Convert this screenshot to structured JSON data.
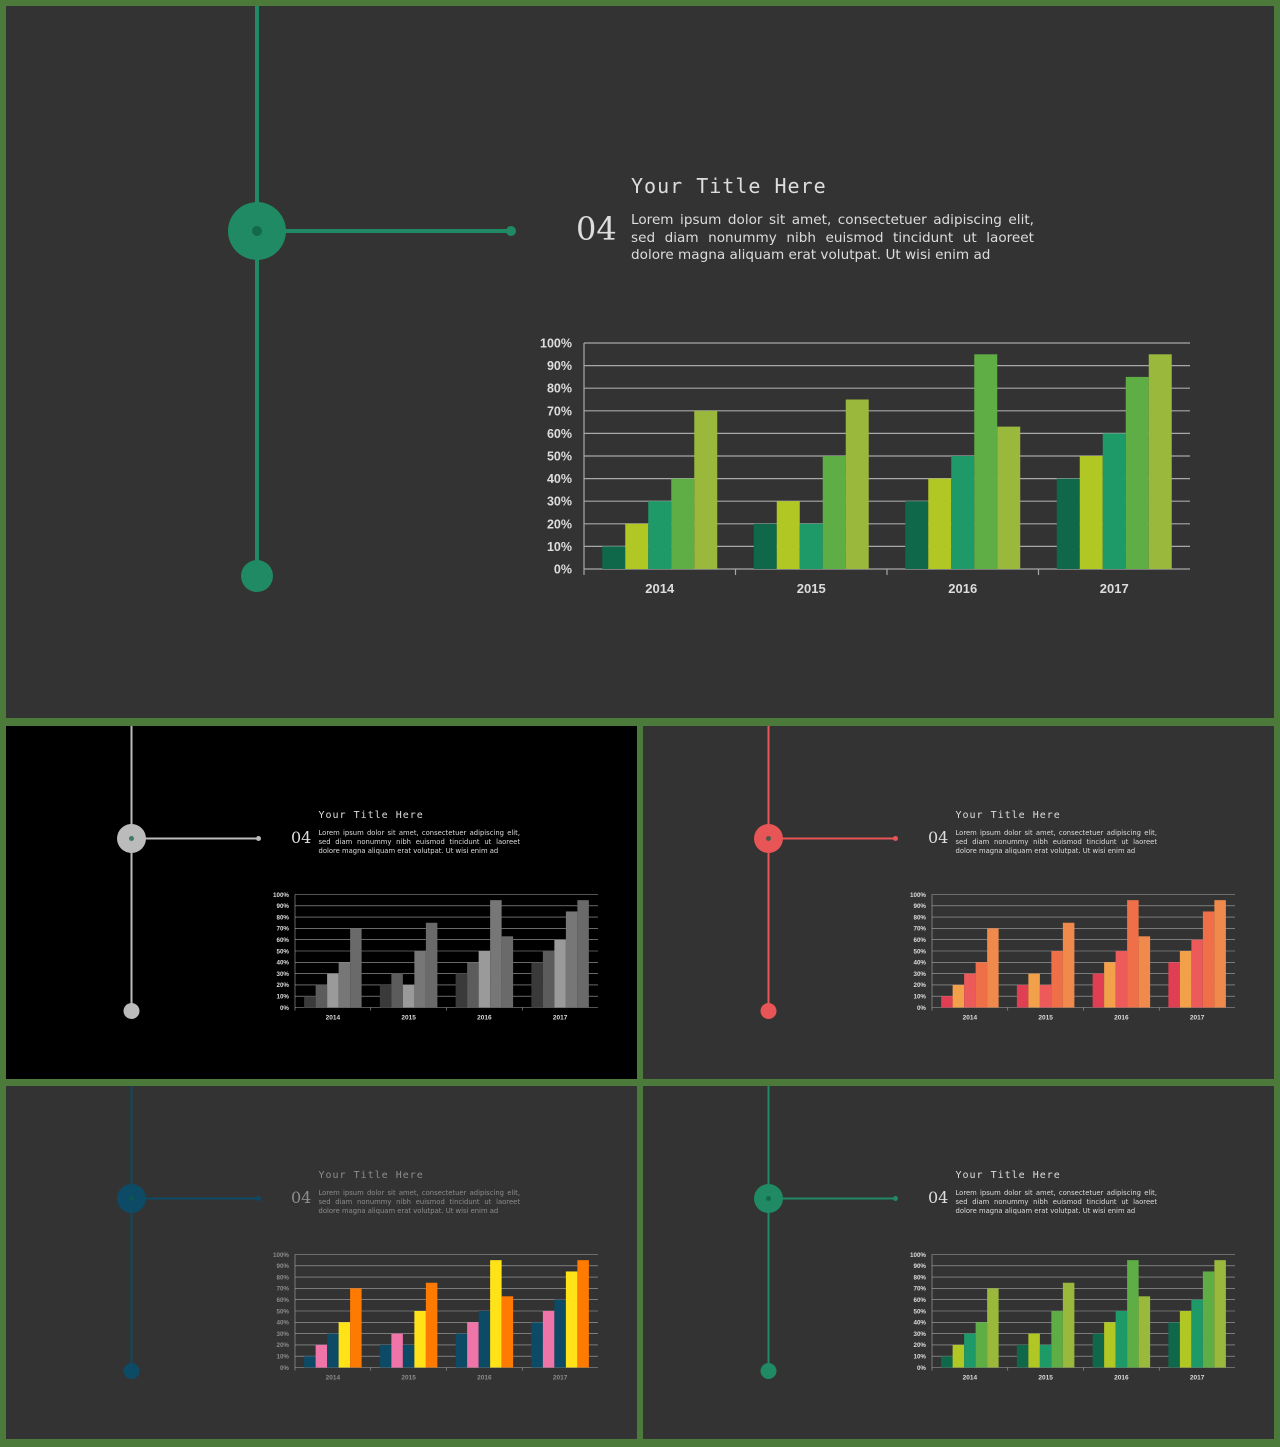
{
  "slide": {
    "title": "Your Title Here",
    "number": "04",
    "body": "Lorem ipsum dolor sit amet, consectetuer adipiscing elit, sed diam nonummy nibh euismod tincidunt ut laoreet dolore magna aliquam erat volutpat. Ut wisi enim ad"
  },
  "chart_data": {
    "type": "bar",
    "categories": [
      "2014",
      "2015",
      "2016",
      "2017"
    ],
    "series": [
      {
        "values": [
          10,
          20,
          30,
          40
        ]
      },
      {
        "values": [
          20,
          30,
          40,
          50
        ]
      },
      {
        "values": [
          30,
          20,
          50,
          60
        ]
      },
      {
        "values": [
          40,
          50,
          95,
          85
        ]
      },
      {
        "values": [
          70,
          75,
          63,
          95
        ]
      }
    ],
    "ylim": [
      0,
      100
    ],
    "yticks": [
      "0%",
      "10%",
      "20%",
      "30%",
      "40%",
      "50%",
      "60%",
      "70%",
      "80%",
      "90%",
      "100%"
    ],
    "grid": true
  },
  "themes": [
    {
      "name": "green-large",
      "background": "#333333",
      "accent": "#1f8a63",
      "text": "#dddddd",
      "bars": [
        "#10684a",
        "#b1c724",
        "#1e9a68",
        "#5fae45",
        "#9ab83c"
      ]
    },
    {
      "name": "grey",
      "background": "#000000",
      "accent": "#bbbbbb",
      "text": "#dddddd",
      "bars": [
        "#3a3a3a",
        "#5c5c5c",
        "#9a9a9a",
        "#777777",
        "#6a6a6a"
      ]
    },
    {
      "name": "coral",
      "background": "#333333",
      "accent": "#e85557",
      "text": "#dddddd",
      "bars": [
        "#e03e52",
        "#f2a14a",
        "#ec5a5a",
        "#ef7048",
        "#ef8a4c"
      ]
    },
    {
      "name": "navy",
      "background": "#333333",
      "accent": "#0d4a66",
      "text": "#8c8c8c",
      "bars": [
        "#0d4a66",
        "#ef74a8",
        "#0d4a66",
        "#ffe318",
        "#ff7a00"
      ]
    },
    {
      "name": "green-small",
      "background": "#333333",
      "accent": "#1f8a63",
      "text": "#dddddd",
      "bars": [
        "#10684a",
        "#b1c724",
        "#1e9a68",
        "#5fae45",
        "#9ab83c"
      ]
    }
  ]
}
